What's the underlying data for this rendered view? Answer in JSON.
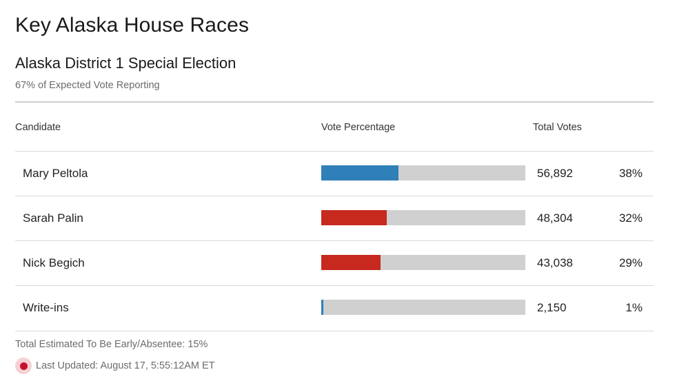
{
  "page": {
    "title": "Key Alaska House Races"
  },
  "race": {
    "title": "Alaska District 1 Special Election",
    "reporting": "67% of Expected Vote Reporting"
  },
  "table": {
    "headers": {
      "candidate": "Candidate",
      "vote_percentage": "Vote Percentage",
      "total_votes": "Total Votes"
    },
    "rows": [
      {
        "name": "Mary Peltola",
        "votes": "56,892",
        "pct": "38%",
        "share": 0.38,
        "color": "#2f7fb8"
      },
      {
        "name": "Sarah Palin",
        "votes": "48,304",
        "pct": "32%",
        "share": 0.32,
        "color": "#c7291f"
      },
      {
        "name": "Nick Begich",
        "votes": "43,038",
        "pct": "29%",
        "share": 0.29,
        "color": "#c7291f"
      },
      {
        "name": "Write-ins",
        "votes": "2,150",
        "pct": "1%",
        "share": 0.01,
        "color": "#2f7fb8"
      }
    ]
  },
  "footer": {
    "early_absentee": "Total Estimated To Be Early/Absentee: 15%",
    "last_updated": "Last Updated: August 17, 5:55:12AM ET"
  },
  "colors": {
    "democrat": "#2f7fb8",
    "republican": "#c7291f",
    "bar_track": "#d0d0d0",
    "live_indicator": "#c8102e"
  }
}
